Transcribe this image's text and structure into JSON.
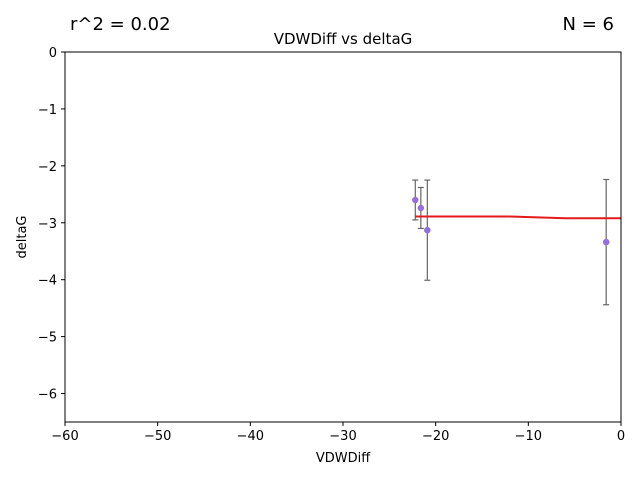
{
  "annotations": {
    "r2_label": "r^2 = 0.02",
    "n_label": "N = 6"
  },
  "chart_data": {
    "type": "scatter",
    "title": "VDWDiff vs deltaG",
    "xlabel": "VDWDiff",
    "ylabel": "deltaG",
    "xlim": [
      -60,
      0
    ],
    "ylim": [
      -6.5,
      0
    ],
    "xticks": [
      -60,
      -50,
      -40,
      -30,
      -20,
      -10,
      0
    ],
    "yticks": [
      0,
      -1,
      -2,
      -3,
      -4,
      -5,
      -6
    ],
    "xtick_labels": [
      "−60",
      "−50",
      "−40",
      "−30",
      "−20",
      "−10",
      "0"
    ],
    "ytick_labels": [
      "0",
      "−1",
      "−2",
      "−3",
      "−4",
      "−5",
      "−6"
    ],
    "grid": false,
    "colors": {
      "points": "#9370db",
      "errorbars": "#666666",
      "fit": "#e41a1c"
    },
    "points": [
      {
        "x": -22.2,
        "y": -2.6,
        "err": 0.35
      },
      {
        "x": -21.6,
        "y": -2.74,
        "err": 0.36
      },
      {
        "x": -20.9,
        "y": -3.13,
        "err": 0.88
      },
      {
        "x": -20.9,
        "y": -3.13,
        "err": 0.0
      },
      {
        "x": -1.6,
        "y": -3.34,
        "err": 1.1
      },
      {
        "x": -1.6,
        "y": -3.34,
        "err": 0.0
      }
    ],
    "fit_line": {
      "x": [
        -22.2,
        -12,
        -6,
        -1.6,
        0
      ],
      "y": [
        -2.89,
        -2.89,
        -2.92,
        -2.92,
        -2.92
      ]
    }
  }
}
